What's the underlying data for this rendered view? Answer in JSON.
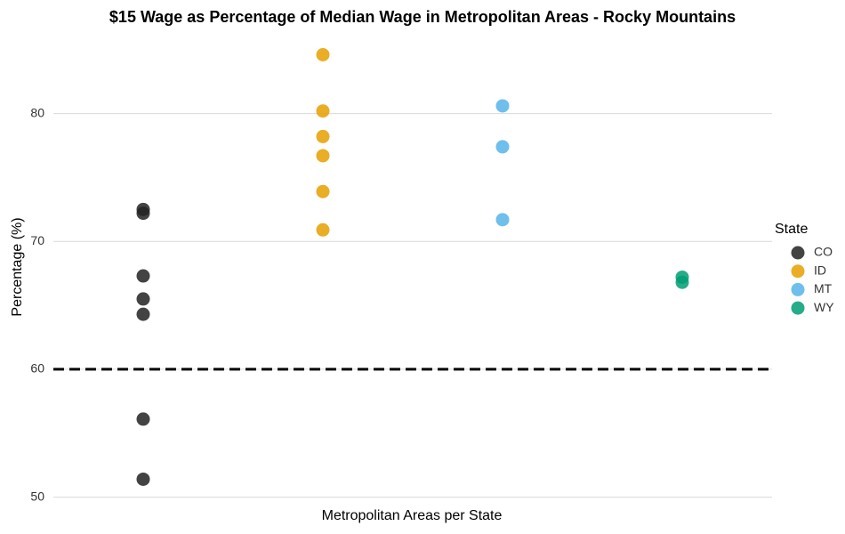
{
  "chart_data": {
    "type": "strip",
    "title": "$15 Wage as Percentage of Median Wage in Metropolitan Areas - Rocky Mountains",
    "x_label": "Metropolitan Areas per State",
    "y_label": "Percentage (%)",
    "legend_title": "State",
    "legend_position": "right",
    "series": [
      {
        "name": "CO",
        "color": "#222222",
        "values": [
          72.5,
          72.2,
          67.3,
          65.5,
          64.3,
          56.1,
          51.4
        ]
      },
      {
        "name": "ID",
        "color": "#E69F00",
        "values": [
          84.6,
          80.2,
          78.2,
          76.7,
          73.9,
          70.9
        ]
      },
      {
        "name": "MT",
        "color": "#56B4E9",
        "values": [
          80.6,
          77.4,
          71.7
        ]
      },
      {
        "name": "WY",
        "color": "#009E73",
        "values": [
          67.2,
          66.8
        ]
      }
    ],
    "hline": 60,
    "ylim": [
      49.9,
      85.4
    ],
    "yticks": [
      50,
      60,
      70,
      80
    ],
    "grid": true
  }
}
